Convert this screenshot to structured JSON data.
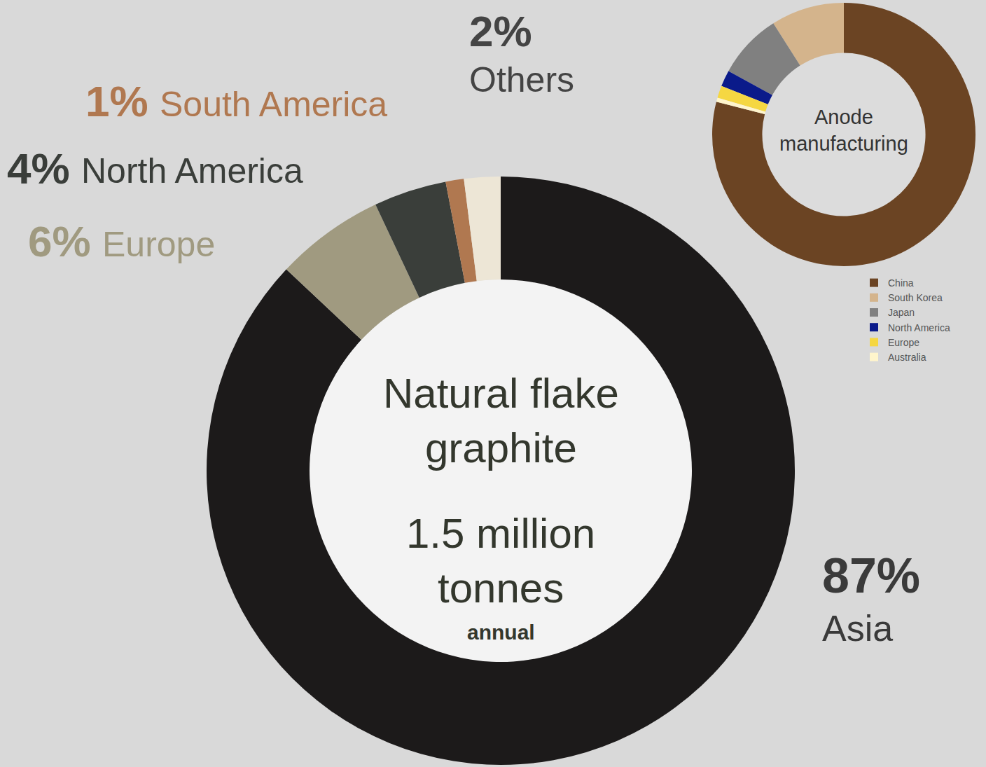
{
  "chart_data": [
    {
      "type": "pie",
      "annotations": [
        "Natural flake graphite",
        "1.5 million tonnes",
        "annual"
      ],
      "categories": [
        "Asia",
        "Europe",
        "North America",
        "South America",
        "Others"
      ],
      "values": [
        87,
        6,
        4,
        1,
        2
      ],
      "value_labels": [
        "87%",
        "6%",
        "4%",
        "1%",
        "2%"
      ],
      "colors": [
        "#1c1a1a",
        "#a09a80",
        "#3a3e3a",
        "#b07850",
        "#ede6d6"
      ],
      "data_labels": true
    },
    {
      "type": "pie",
      "annotations": [
        "Anode manufacturing"
      ],
      "categories": [
        "China",
        "South Korea",
        "Japan",
        "North America",
        "Europe",
        "Australia"
      ],
      "values": [
        79,
        9,
        8,
        2,
        1.5,
        0.5
      ],
      "colors": [
        "#6b4423",
        "#d4b48c",
        "#808080",
        "#0a1a8a",
        "#f5d742",
        "#fff5cc"
      ],
      "legend": "right"
    }
  ]
}
